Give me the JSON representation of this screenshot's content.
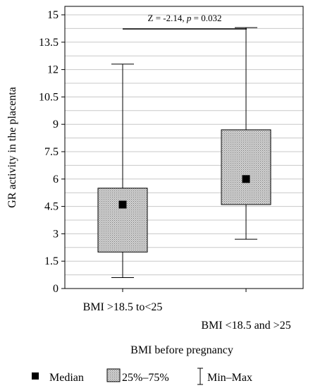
{
  "chart_data": {
    "type": "boxplot",
    "title": "",
    "xlabel": "BMI before pregnancy",
    "ylabel": "GR activity in the placenta",
    "ylim": [
      0,
      16
    ],
    "yticks": [
      "0",
      "1.5",
      "3",
      "4.5",
      "6",
      "7.5",
      "9",
      "10.5",
      "12",
      "13.5",
      "15"
    ],
    "ytick_values": [
      0,
      1.5,
      3,
      4.5,
      6,
      7.5,
      9,
      10.5,
      12,
      13.5,
      15
    ],
    "grid": true,
    "categories": [
      "BMI >18.5 to<25",
      "BMI <18.5 and >25"
    ],
    "boxes": [
      {
        "category": "BMI >18.5 to<25",
        "min": 0.6,
        "q1": 2.0,
        "median": 4.6,
        "q3": 5.5,
        "max": 12.3
      },
      {
        "category": "BMI <18.5 and >25",
        "min": 2.7,
        "q1": 4.6,
        "median": 6.0,
        "q3": 8.7,
        "max": 14.3
      }
    ],
    "annotation": {
      "z_text": "Z = -2.14, ",
      "p_symbol": "p",
      "p_value": " = 0.032"
    },
    "legend": {
      "position": "bottom",
      "items": [
        "Median",
        "25%–75%",
        "Min–Max"
      ]
    }
  }
}
